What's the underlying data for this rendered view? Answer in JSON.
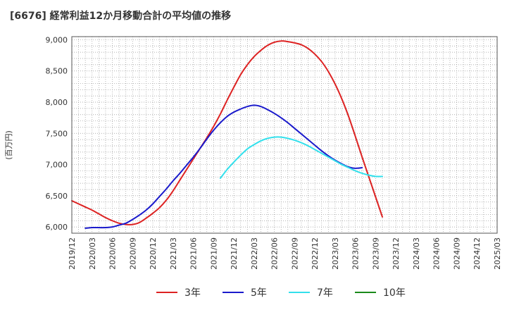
{
  "chart_data": {
    "type": "line",
    "title": "[6676]  経常利益12か月移動合計の平均値の推移",
    "ylabel": "(百万円)",
    "ylim": [
      5900,
      9050
    ],
    "yticks": [
      6000,
      6500,
      7000,
      7500,
      8000,
      8500,
      9000
    ],
    "ytick_labels": [
      "6,000",
      "6,500",
      "7,000",
      "7,500",
      "8,000",
      "8,500",
      "9,000"
    ],
    "xtick_labels": [
      "2019/12",
      "2020/03",
      "2020/06",
      "2020/09",
      "2020/12",
      "2021/03",
      "2021/06",
      "2021/09",
      "2021/12",
      "2022/03",
      "2022/06",
      "2022/09",
      "2022/12",
      "2023/03",
      "2023/06",
      "2023/09",
      "2023/12",
      "2024/03",
      "2024/06",
      "2024/09",
      "2024/12",
      "2025/03"
    ],
    "grid": true,
    "legend_position": "bottom",
    "series": [
      {
        "name": "3年",
        "color": "#dd2222",
        "start_index": 0,
        "values": [
          6420,
          6370,
          6320,
          6270,
          6210,
          6150,
          6100,
          6060,
          6040,
          6040,
          6070,
          6140,
          6220,
          6310,
          6430,
          6580,
          6750,
          6920,
          7090,
          7260,
          7430,
          7610,
          7810,
          8030,
          8240,
          8440,
          8600,
          8730,
          8830,
          8910,
          8960,
          8980,
          8970,
          8950,
          8920,
          8860,
          8770,
          8650,
          8490,
          8290,
          8050,
          7770,
          7450,
          7120,
          6800,
          6480,
          6160
        ]
      },
      {
        "name": "5年",
        "color": "#1a1acc",
        "start_index": 2,
        "values": [
          5980,
          5990,
          5990,
          5990,
          6000,
          6030,
          6060,
          6120,
          6190,
          6270,
          6370,
          6490,
          6610,
          6740,
          6860,
          6990,
          7120,
          7260,
          7410,
          7550,
          7670,
          7770,
          7840,
          7890,
          7930,
          7950,
          7930,
          7880,
          7820,
          7750,
          7670,
          7580,
          7490,
          7400,
          7310,
          7220,
          7140,
          7070,
          7010,
          6960,
          6940,
          6950
        ]
      },
      {
        "name": "7年",
        "color": "#33e0ec",
        "start_index": 22,
        "values": [
          6780,
          6920,
          7040,
          7150,
          7250,
          7320,
          7380,
          7420,
          7440,
          7440,
          7420,
          7390,
          7350,
          7300,
          7240,
          7180,
          7120,
          7060,
          7000,
          6950,
          6900,
          6860,
          6830,
          6810,
          6810
        ]
      },
      {
        "name": "10年",
        "color": "#1a8a1a",
        "start_index": 0,
        "values": []
      }
    ]
  }
}
